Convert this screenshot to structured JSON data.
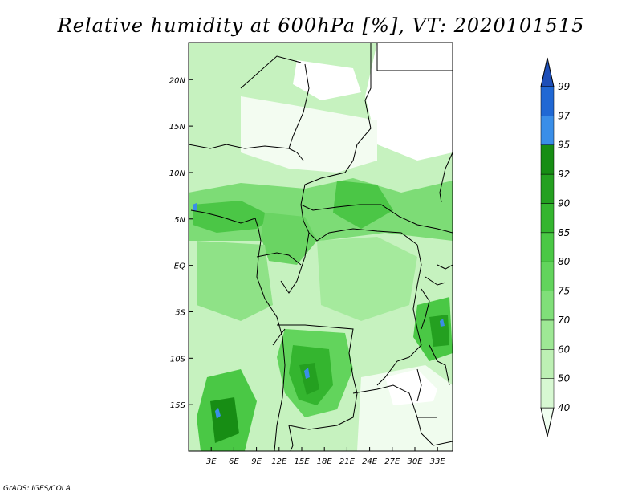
{
  "title": "Relative humidity at 600hPa [%], VT: 2020101515",
  "credit": "GrADS: IGES/COLA",
  "map": {
    "lon_range": [
      0,
      35
    ],
    "lat_range": [
      -20,
      24
    ],
    "x_ticks": [
      {
        "value": 3,
        "label": "3E"
      },
      {
        "value": 6,
        "label": "6E"
      },
      {
        "value": 9,
        "label": "9E"
      },
      {
        "value": 12,
        "label": "12E"
      },
      {
        "value": 15,
        "label": "15E"
      },
      {
        "value": 18,
        "label": "18E"
      },
      {
        "value": 21,
        "label": "21E"
      },
      {
        "value": 24,
        "label": "24E"
      },
      {
        "value": 27,
        "label": "27E"
      },
      {
        "value": 30,
        "label": "30E"
      },
      {
        "value": 33,
        "label": "33E"
      }
    ],
    "y_ticks": [
      {
        "value": 20,
        "label": "20N"
      },
      {
        "value": 15,
        "label": "15N"
      },
      {
        "value": 10,
        "label": "10N"
      },
      {
        "value": 5,
        "label": "5N"
      },
      {
        "value": 0,
        "label": "EQ"
      },
      {
        "value": -5,
        "label": "5S"
      },
      {
        "value": -10,
        "label": "10S"
      },
      {
        "value": -15,
        "label": "15S"
      }
    ]
  },
  "legend": {
    "labels": [
      "40",
      "50",
      "60",
      "70",
      "75",
      "80",
      "85",
      "90",
      "92",
      "95",
      "97",
      "99"
    ],
    "colors": [
      "#f0fff0",
      "#d7f8d2",
      "#bdf0b4",
      "#9ee895",
      "#80df79",
      "#62d45c",
      "#4ac845",
      "#34b52f",
      "#24a020",
      "#178d14",
      "#3a8ee8",
      "#2068d4",
      "#1e4fb8"
    ]
  }
}
